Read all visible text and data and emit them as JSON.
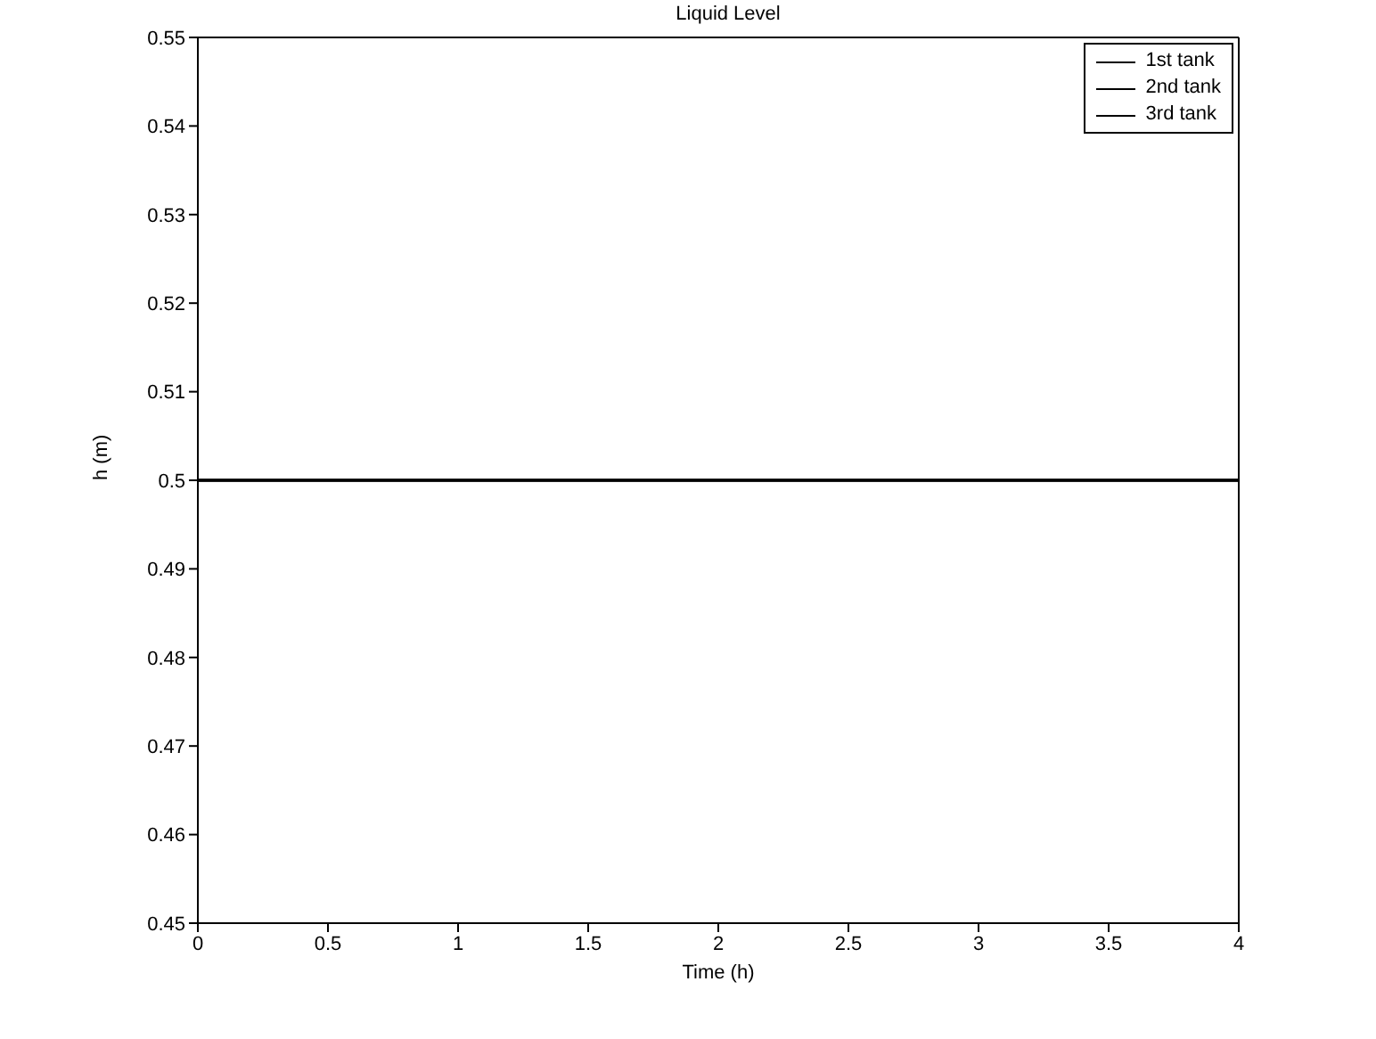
{
  "chart_data": {
    "type": "line",
    "title": "Liquid Level",
    "xlabel": "Time (h)",
    "ylabel": "h (m)",
    "x": [
      0,
      4
    ],
    "series": [
      {
        "name": "1st tank",
        "color": "#000000",
        "values": [
          0.5,
          0.5
        ]
      },
      {
        "name": "2nd tank",
        "color": "#000000",
        "values": [
          0.5,
          0.5
        ]
      },
      {
        "name": "3rd tank",
        "color": "#000000",
        "values": [
          0.5,
          0.5
        ]
      }
    ],
    "xlim": [
      0,
      4
    ],
    "xticks": [
      0,
      0.5,
      1,
      1.5,
      2,
      2.5,
      3,
      3.5,
      4
    ],
    "ylim": [
      0.45,
      0.55
    ],
    "yticks": [
      0.45,
      0.46,
      0.47,
      0.48,
      0.49,
      0.5,
      0.51,
      0.52,
      0.53,
      0.54,
      0.55
    ],
    "grid": false,
    "legend": "top right",
    "marker": "none",
    "line_style": "solid"
  }
}
